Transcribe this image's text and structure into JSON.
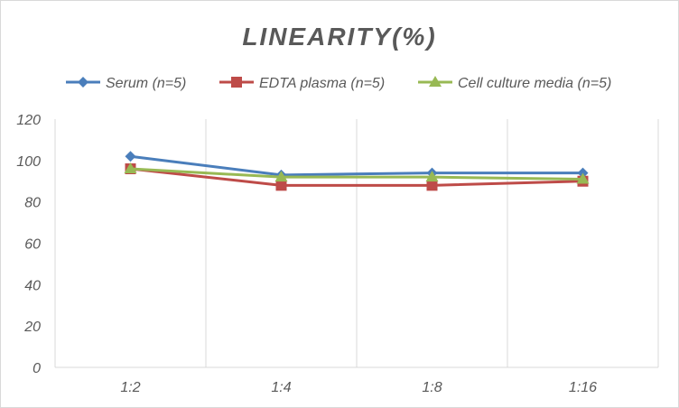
{
  "chart_data": {
    "type": "line",
    "title": "LINEARITY(%)",
    "xlabel": "",
    "ylabel": "",
    "categories": [
      "1:2",
      "1:4",
      "1:8",
      "1:16"
    ],
    "ylim": [
      0,
      120
    ],
    "yticks": [
      0,
      20,
      40,
      60,
      80,
      100,
      120
    ],
    "grid": "vertical lines between categories",
    "legend_position": "top",
    "series": [
      {
        "name": "Serum (n=5)",
        "values": [
          102,
          93,
          94,
          94
        ],
        "color": "#4a7ebb",
        "marker": "diamond"
      },
      {
        "name": "EDTA plasma (n=5)",
        "values": [
          96,
          88,
          88,
          90
        ],
        "color": "#be4b48",
        "marker": "square"
      },
      {
        "name": "Cell culture media (n=5)",
        "values": [
          96,
          92,
          92,
          91
        ],
        "color": "#98b954",
        "marker": "triangle"
      }
    ]
  }
}
